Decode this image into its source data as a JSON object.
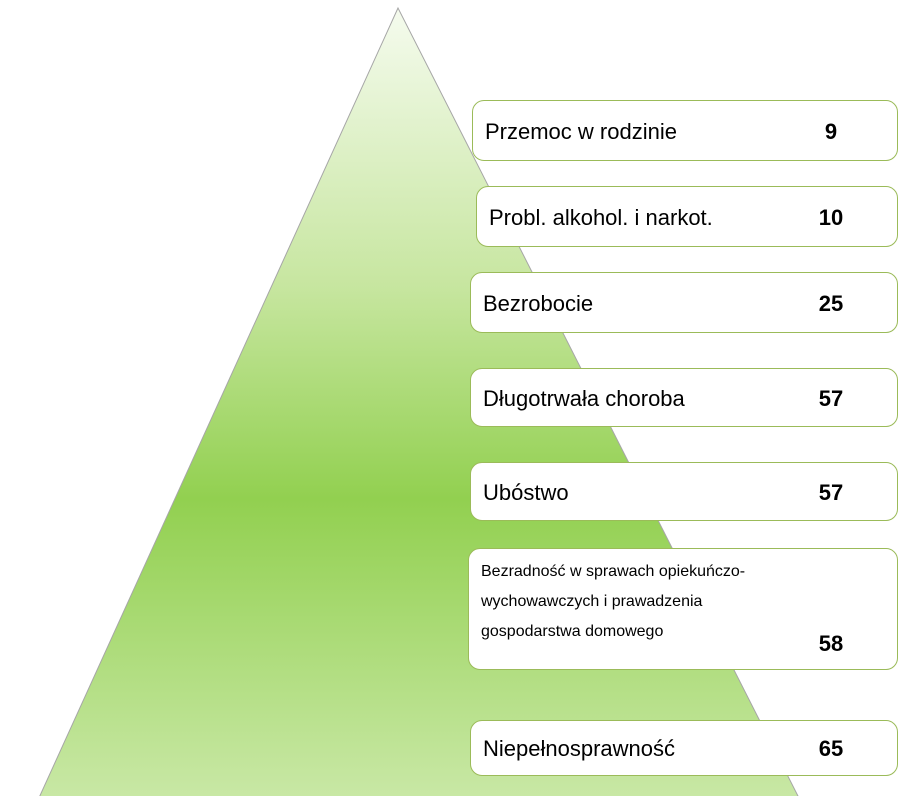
{
  "items": [
    {
      "label": [
        "Przemoc w rodzinie"
      ],
      "value": 9
    },
    {
      "label": [
        "Probl. alkohol. i narkot."
      ],
      "value": 10
    },
    {
      "label": [
        "Bezrobocie"
      ],
      "value": 25
    },
    {
      "label": [
        "Długotrwała choroba"
      ],
      "value": 57
    },
    {
      "label": [
        "Ubóstwo"
      ],
      "value": 57
    },
    {
      "label": [
        "Bezradność w sprawach opiekuńczo-",
        "wychowawczych i prawadzenia",
        "gospodarstwa domowego"
      ],
      "value": 58
    },
    {
      "label": [
        "Niepełnosprawność"
      ],
      "value": 65
    }
  ]
}
